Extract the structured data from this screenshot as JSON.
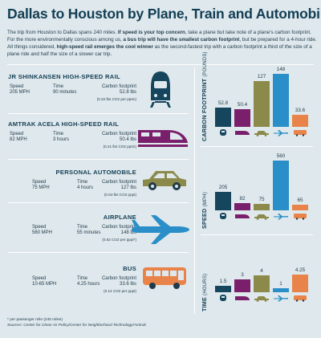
{
  "title": "Dallas to Houston by Plane, Train and Automobile",
  "intro": {
    "p1": "The trip from Houston to Dallas spans 240 miles. ",
    "b1": "If speed is your top concern",
    "p2": ", take a plane but take note of a plane's carbon footprint. For the more environmentally conscious among us, ",
    "b2": "a bus trip will have the smallest carbon footprint",
    "p3": ", but be prepared for a 4-hour ride. All things considered, ",
    "b3": "high-speed rail emerges the cool winner",
    "p4": " as the second-fastest trip with a carbon footprint a third of the size of a plane ride and half the size of a slower car trip."
  },
  "labels": {
    "speed": "Speed",
    "time": "Time",
    "carbon": "Carbon footprint"
  },
  "modes": [
    {
      "name": "JR SHINKANSEN HIGH-SPEED RAIL",
      "speed": "205 MPH",
      "time": "90 minutes",
      "carbon": "52.8 lbs",
      "note": "(0.22 lbs CO2 per pptm)",
      "icon": "bullet-train-icon"
    },
    {
      "name": "AMTRAK ACELA HIGH-SPEED RAIL",
      "speed": "82 MPH",
      "time": "3 hours",
      "carbon": "50.4 lbs",
      "note": "(0.21 lbs CO2 pptm)",
      "icon": "acela-train-icon"
    },
    {
      "name": "PERSONAL AUTOMOBILE",
      "speed": "75 MPH",
      "time": "4 hours",
      "carbon": "127 lbs",
      "note": "(0.53 lbs CO2 pppt)",
      "icon": "car-icon"
    },
    {
      "name": "AIRPLANE",
      "speed": "560 MPH",
      "time": "55 minutes",
      "carbon": "148 lbs",
      "note": "(0.62 CO2 per pppt*)",
      "icon": "airplane-icon"
    },
    {
      "name": "BUS",
      "speed": "10-65 MPH",
      "time": "4.25 hours",
      "carbon": "33.6 lbs",
      "note": "(0.14 CO2 per pppt)",
      "icon": "bus-icon"
    }
  ],
  "chart_data": [
    {
      "type": "bar",
      "title": "CARBON FOOTPRINT",
      "ylabel": "(POUNDS)",
      "categories": [
        "JR Shinkansen",
        "Amtrak Acela",
        "Personal automobile",
        "Airplane",
        "Bus"
      ],
      "values": [
        52.8,
        50.4,
        127,
        148,
        33.6
      ],
      "labels": [
        "52.8",
        "50.4",
        "127",
        "148",
        "33.6"
      ]
    },
    {
      "type": "bar",
      "title": "SPEED",
      "ylabel": "(MPH)",
      "categories": [
        "JR Shinkansen",
        "Amtrak Acela",
        "Personal automobile",
        "Airplane",
        "Bus"
      ],
      "values": [
        205,
        82,
        75,
        560,
        65
      ],
      "labels": [
        "205",
        "82",
        "75",
        "560",
        "65"
      ]
    },
    {
      "type": "bar",
      "title": "TIME",
      "ylabel": "(HOURS)",
      "categories": [
        "JR Shinkansen",
        "Amtrak Acela",
        "Personal automobile",
        "Airplane",
        "Bus"
      ],
      "values": [
        1.5,
        3,
        4,
        1,
        4.25
      ],
      "labels": [
        "1.5",
        "3",
        "4",
        "1",
        "4.25"
      ]
    }
  ],
  "colors": {
    "shinkansen": "#16465e",
    "acela": "#7a1f6b",
    "car": "#8c8a4a",
    "airplane": "#2a8fc8",
    "bus": "#e8834a"
  },
  "footnotes": {
    "f1": "* per passenger mile (240 miles)",
    "f2": "Sources: Center for Clean Air Policy/Center for Neighborhood Technology/Amtrak"
  }
}
